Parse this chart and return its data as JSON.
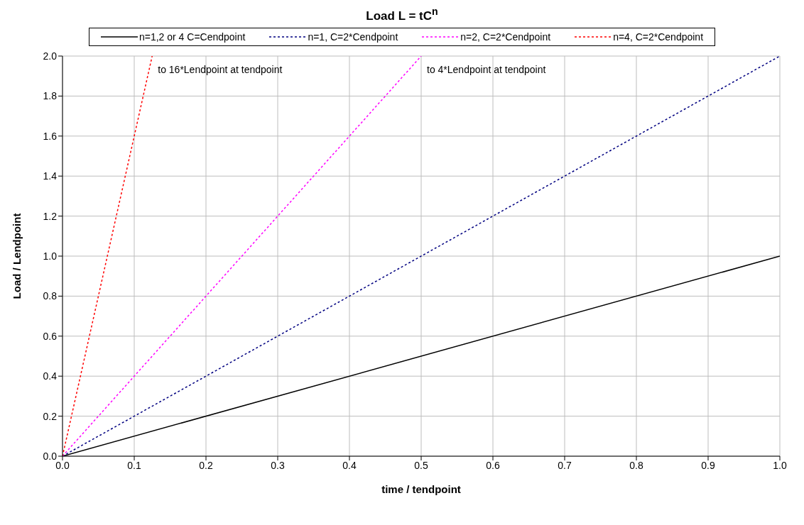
{
  "chart_data": {
    "type": "line",
    "title": "Load L = tC$^{n}$",
    "xlabel": "time / tendpoint",
    "ylabel": "Load / Lendpoint",
    "series": [
      {
        "name": "n=1,2 or 4 C=Cendpoint",
        "color": "#000000",
        "line_style": "solid",
        "x": [
          0,
          1
        ],
        "values": [
          0,
          1
        ]
      },
      {
        "name": "n=1, C=2*Cendpoint",
        "color": "#000080",
        "line_style": "dotted",
        "x": [
          0,
          1
        ],
        "values": [
          0,
          2
        ]
      },
      {
        "name": "n=2, C=2*Cendpoint",
        "color": "#ff00ff",
        "line_style": "dotted",
        "x": [
          0,
          0.5
        ],
        "values": [
          0,
          2
        ]
      },
      {
        "name": "n=4, C=2*Cendpoint",
        "color": "#ff0000",
        "line_style": "dotted",
        "x": [
          0,
          0.125
        ],
        "values": [
          0,
          2
        ]
      }
    ],
    "annotations": [
      {
        "text": "to 16*Lendpoint at tendpoint",
        "x": 0.125,
        "y": 2
      },
      {
        "text": "to 4*Lendpoint at tendpoint",
        "x": 0.5,
        "y": 2
      }
    ],
    "xlim": [
      0,
      1
    ],
    "xticks": [
      {
        "value": 0,
        "label": "0.0"
      },
      {
        "value": 0.1,
        "label": "0.1"
      },
      {
        "value": 0.2,
        "label": "0.2"
      },
      {
        "value": 0.3,
        "label": "0.3"
      },
      {
        "value": 0.4,
        "label": "0.4"
      },
      {
        "value": 0.5,
        "label": "0.5"
      },
      {
        "value": 0.6,
        "label": "0.6"
      },
      {
        "value": 0.7,
        "label": "0.7"
      },
      {
        "value": 0.8,
        "label": "0.8"
      },
      {
        "value": 0.9,
        "label": "0.9"
      },
      {
        "value": 1,
        "label": "1.0"
      }
    ],
    "ylim": [
      0,
      2
    ],
    "yticks": [
      {
        "value": 0,
        "label": "0.0"
      },
      {
        "value": 0.2,
        "label": "0.2"
      },
      {
        "value": 0.4,
        "label": "0.4"
      },
      {
        "value": 0.6,
        "label": "0.6"
      },
      {
        "value": 0.8,
        "label": "0.8"
      },
      {
        "value": 1,
        "label": "1.0"
      },
      {
        "value": 1.2,
        "label": "1.2"
      },
      {
        "value": 1.4,
        "label": "1.4"
      },
      {
        "value": 1.6,
        "label": "1.6"
      },
      {
        "value": 1.8,
        "label": "1.8"
      },
      {
        "value": 2,
        "label": "2.0"
      }
    ],
    "grid": true,
    "legend": "top",
    "marker": "none"
  }
}
